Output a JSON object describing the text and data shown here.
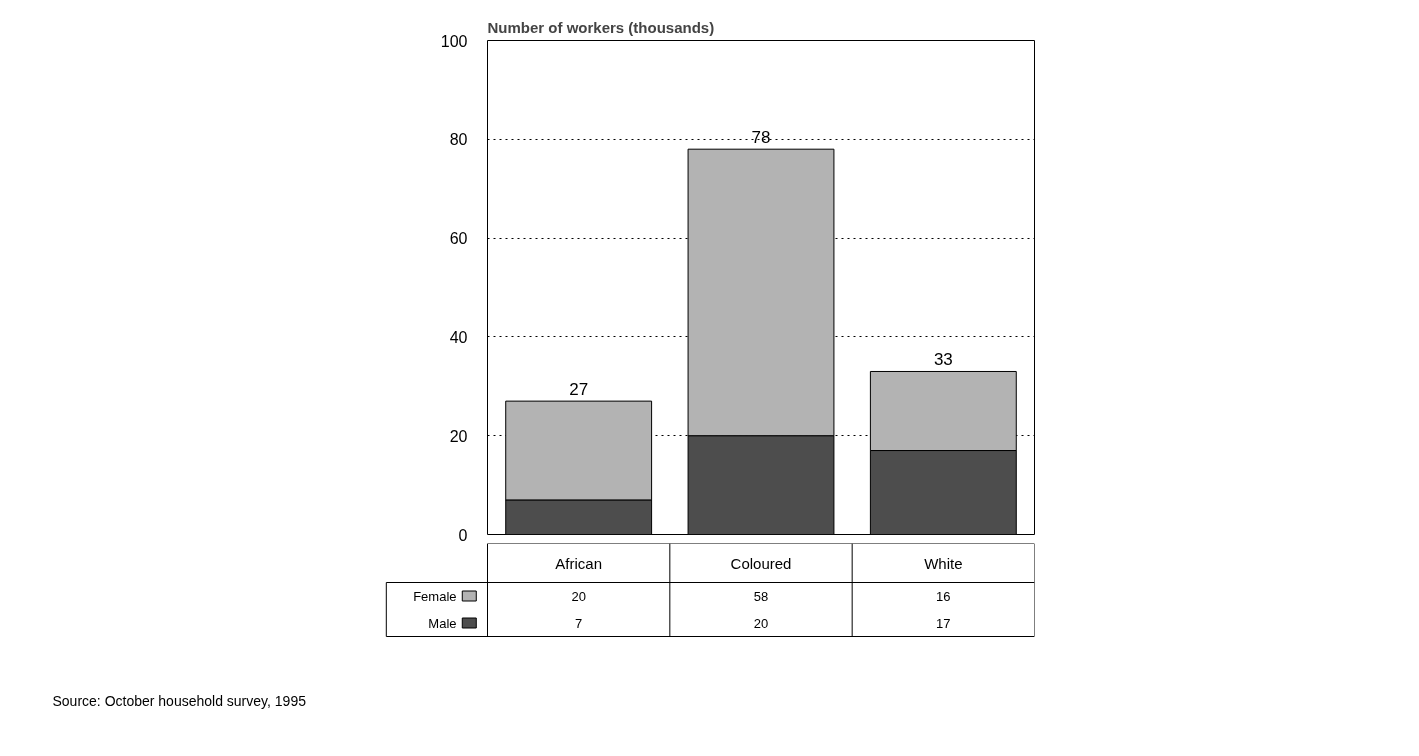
{
  "chart_data": {
    "type": "bar",
    "title": "Number of workers (thousands)",
    "categories": [
      "African",
      "Coloured",
      "White"
    ],
    "stacked": true,
    "series": [
      {
        "name": "Male",
        "color": "#4d4d4d",
        "values": [
          7,
          20,
          17
        ]
      },
      {
        "name": "Female",
        "color": "#b3b3b3",
        "values": [
          20,
          58,
          16
        ]
      }
    ],
    "totals": [
      "27",
      "78",
      "33"
    ],
    "data_labels": true,
    "ylim": [
      0,
      100
    ],
    "yticks": [
      0,
      20,
      40,
      60,
      80,
      100
    ],
    "grid": "y",
    "legend": "bottom",
    "annotations": [
      "Source: October household survey, 1995"
    ]
  }
}
